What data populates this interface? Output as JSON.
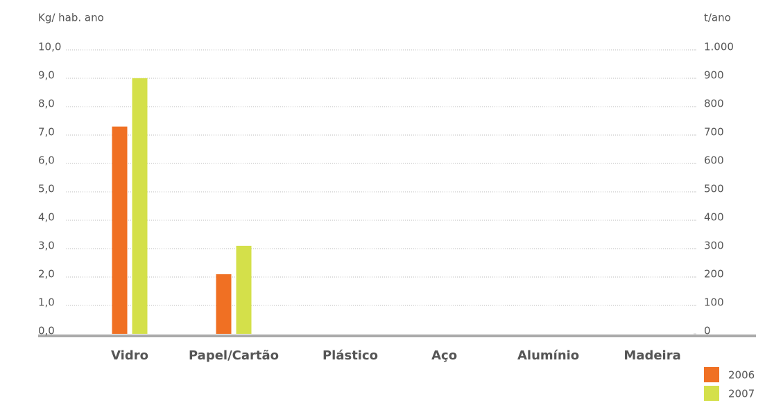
{
  "chart_data": {
    "type": "bar",
    "y_label": "Kg/ hab. ano",
    "y2_label": "t/ano",
    "categories": [
      "Vidro",
      "Papel/Cartão",
      "Plástico",
      "Aço",
      "Alumínio",
      "Madeira"
    ],
    "series": [
      {
        "name": "2006",
        "color": "#f07023",
        "values": [
          7.3,
          2.1,
          null,
          null,
          null,
          null
        ]
      },
      {
        "name": "2007",
        "color": "#d4e04a",
        "values": [
          9.0,
          3.1,
          null,
          null,
          null,
          null
        ]
      }
    ],
    "ylim": [
      0,
      10
    ],
    "yticks": [
      {
        "value": 0,
        "label": "0,0"
      },
      {
        "value": 1,
        "label": "1,0"
      },
      {
        "value": 2,
        "label": "2,0"
      },
      {
        "value": 3,
        "label": "3,0"
      },
      {
        "value": 4,
        "label": "4,0"
      },
      {
        "value": 5,
        "label": "5,0"
      },
      {
        "value": 6,
        "label": "6,0"
      },
      {
        "value": 7,
        "label": "7,0"
      },
      {
        "value": 8,
        "label": "8,0"
      },
      {
        "value": 9,
        "label": "9,0"
      },
      {
        "value": 10,
        "label": "10,0"
      }
    ],
    "y2lim": [
      0,
      1000
    ],
    "y2ticks": [
      0,
      100,
      200,
      300,
      400,
      500,
      600,
      700,
      800,
      900,
      {
        "value": 1000,
        "label": "1.000"
      }
    ],
    "grid": true,
    "legend": "bottom-right"
  }
}
